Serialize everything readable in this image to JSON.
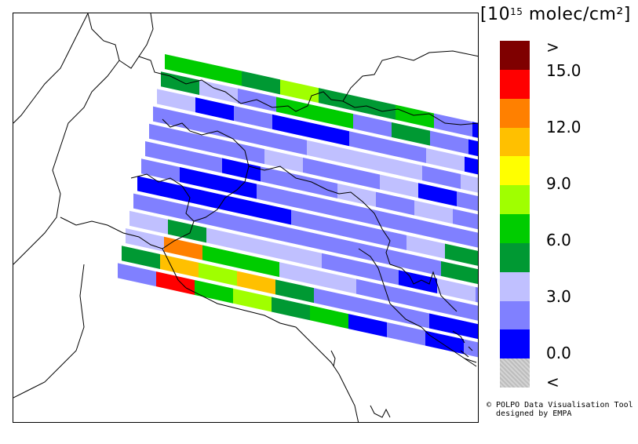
{
  "legend": {
    "title_prefix": "[10",
    "title_exp": "15",
    "title_suffix": " molec/cm²]",
    "colors": [
      "#7f0000",
      "#ff0000",
      "#ff8000",
      "#ffc000",
      "#ffff00",
      "#a0ff00",
      "#00cc00",
      "#009933",
      "#c0c0ff",
      "#8080ff",
      "#0000ff",
      "#c8c8c8"
    ],
    "labels": [
      ">",
      "15.0",
      "12.0",
      "9.0",
      "6.0",
      "3.0",
      "0.0",
      "<"
    ]
  },
  "credit": {
    "line1": "© POLPO Data Visualisation Tool",
    "line2": "  designed by EMPA"
  },
  "map": {
    "region": "Northern Italy / Alps",
    "swaths": [
      {
        "row": 0,
        "values": [
          6.8,
          6.8,
          5.2,
          8.5,
          5.2,
          5.2,
          6.8,
          2.5,
          1.2,
          3.5
        ]
      },
      {
        "row": 1,
        "values": [
          5.2,
          3.5,
          2.5,
          6.8,
          6.8,
          2.5,
          5.2,
          2.5,
          1.2,
          3.5
        ]
      },
      {
        "row": 2,
        "values": [
          3.5,
          1.2,
          2.5,
          1.2,
          1.2,
          2.5,
          2.5,
          3.5,
          1.2,
          1.2
        ]
      },
      {
        "row": 3,
        "values": [
          2.5,
          2.5,
          2.5,
          2.5,
          3.5,
          3.5,
          3.5,
          2.5,
          3.5,
          1.2
        ]
      },
      {
        "row": 4,
        "values": [
          2.5,
          2.5,
          2.5,
          3.5,
          2.5,
          2.5,
          3.5,
          1.2,
          2.5,
          1.2
        ]
      },
      {
        "row": 5,
        "values": [
          2.5,
          2.5,
          1.2,
          2.5,
          2.5,
          3.5,
          2.5,
          3.5,
          2.5,
          2.5
        ]
      },
      {
        "row": 6,
        "values": [
          2.5,
          1.2,
          1.2,
          2.5,
          2.5,
          2.5,
          2.5,
          2.5,
          2.5,
          2.5
        ]
      },
      {
        "row": 7,
        "values": [
          1.2,
          1.2,
          1.2,
          1.2,
          2.5,
          2.5,
          2.5,
          3.5,
          5.2,
          2.5
        ]
      },
      {
        "row": 8,
        "values": [
          2.5,
          2.5,
          2.5,
          2.5,
          2.5,
          2.5,
          2.5,
          2.5,
          5.2,
          3.5
        ]
      },
      {
        "row": 9,
        "values": [
          3.5,
          5.2,
          3.5,
          3.5,
          3.5,
          2.5,
          2.5,
          1.2,
          3.5,
          2.5
        ]
      },
      {
        "row": 10,
        "values": [
          3.5,
          12.5,
          6.8,
          6.8,
          3.5,
          3.5,
          2.5,
          2.5,
          2.5,
          2.5
        ]
      },
      {
        "row": 11,
        "values": [
          5.2,
          10.5,
          8.5,
          11.5,
          5.2,
          2.5,
          2.5,
          2.5,
          1.2,
          1.2
        ]
      },
      {
        "row": 12,
        "values": [
          2.5,
          13.5,
          6.8,
          8.5,
          5.2,
          6.8,
          1.2,
          2.5,
          1.2,
          2.5
        ]
      }
    ]
  }
}
